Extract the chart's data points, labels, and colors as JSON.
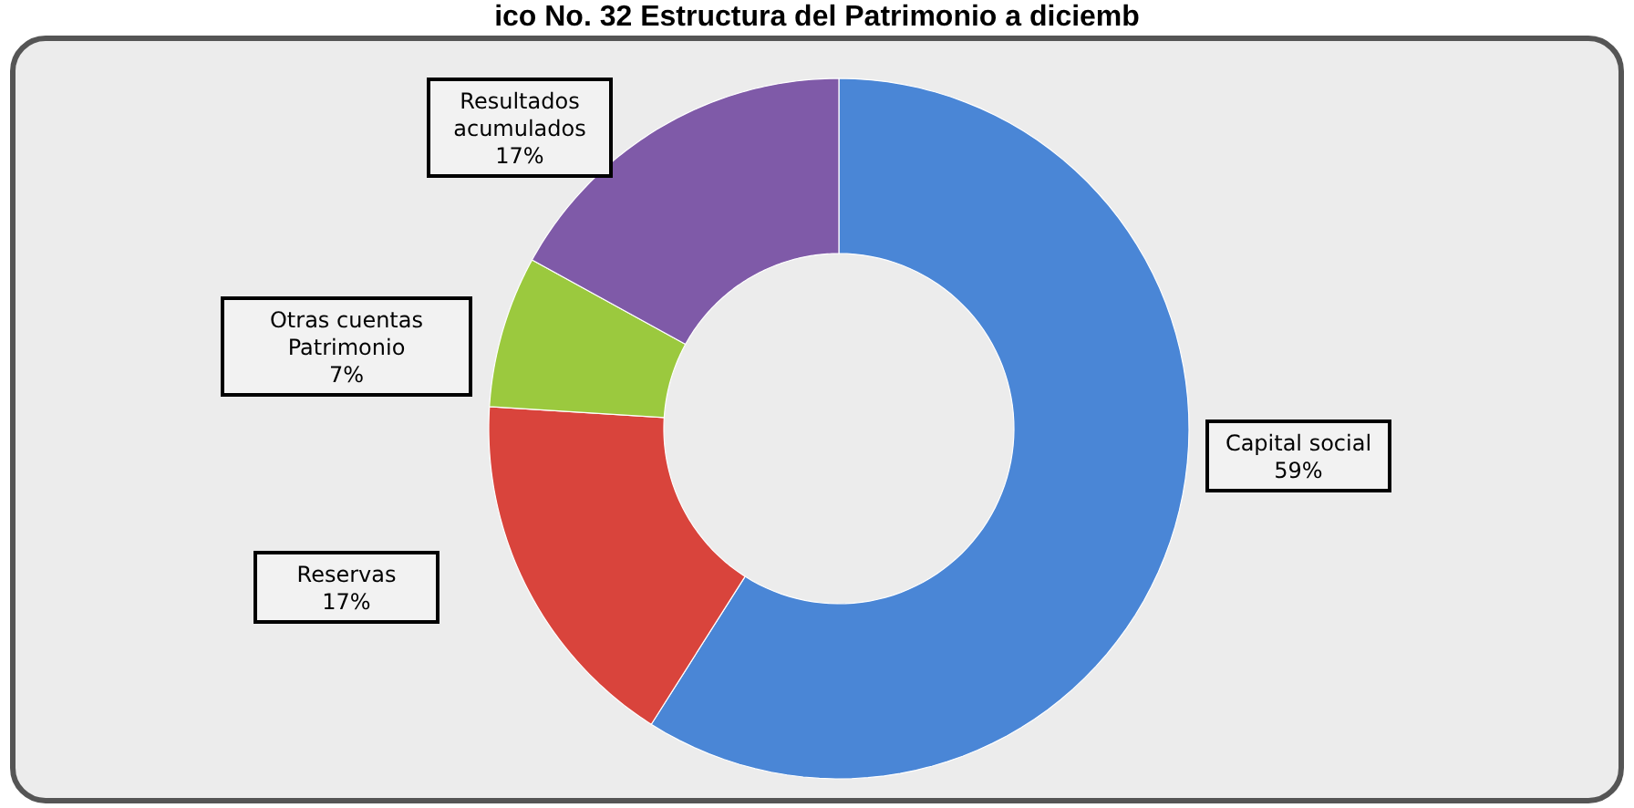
{
  "chart_data": {
    "type": "donut",
    "title": "ico No. 32 Estructura del Patrimonio a diciemb",
    "categories": [
      "Capital social",
      "Reservas",
      "Otras cuentas Patrimonio",
      "Resultados acumulados"
    ],
    "values": [
      59,
      17,
      7,
      17
    ],
    "colors": [
      "#4a86d6",
      "#d9443c",
      "#9bc93e",
      "#7f5aa8"
    ],
    "value_labels": [
      "59%",
      "17%",
      "7%",
      "17%"
    ]
  }
}
